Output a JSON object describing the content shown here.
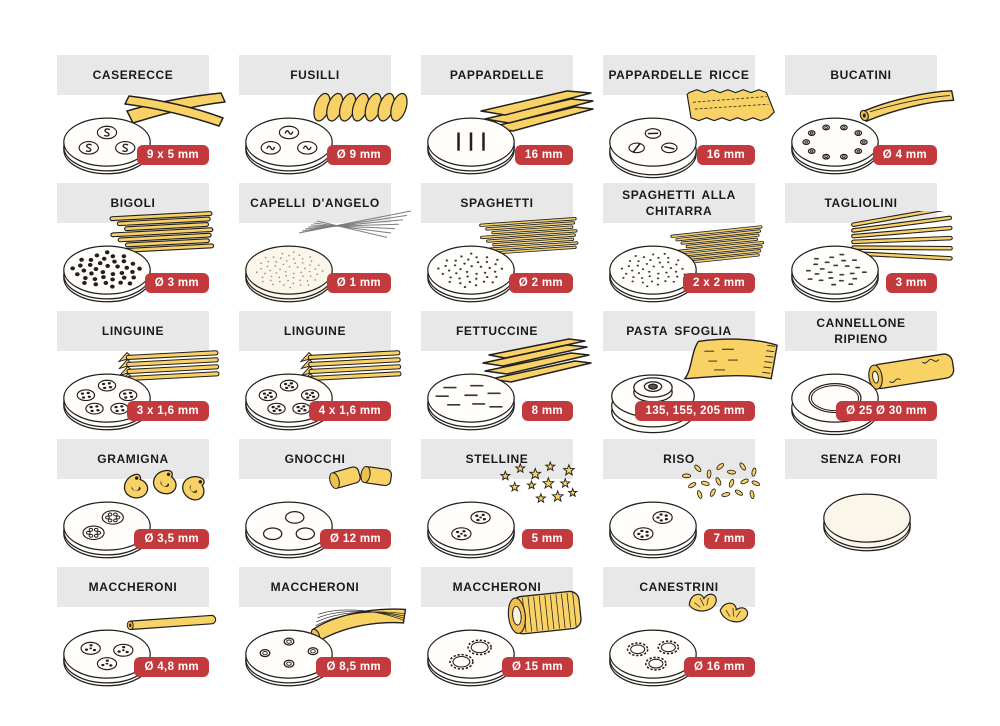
{
  "colors": {
    "background": "#ffffff",
    "bar_bg": "#e8e8e8",
    "title_text": "#1b1b1b",
    "badge_bg": "#c23a3e",
    "badge_text": "#ffffff",
    "pasta_fill": "#f8d265",
    "pasta_shade": "#eec04e",
    "pasta_light": "#fdf3d8",
    "capelli_strand": "#7d7d7d",
    "outline": "#221f1f",
    "die_fill": "#fffefb",
    "die_cream": "#faf6ea",
    "hole_dark": "#3a3a3a"
  },
  "items": [
    {
      "title": "CASERECCE",
      "size": "9 x 5 mm",
      "die": "caserecce",
      "pasta": "caserecce"
    },
    {
      "title": "FUSILLI",
      "size": "Ø 9 mm",
      "die": "fusilli",
      "pasta": "fusilli"
    },
    {
      "title": "PAPPARDELLE",
      "size": "16 mm",
      "die": "pappardelle",
      "pasta": "pappardelle"
    },
    {
      "title": "PAPPARDELLE RICCE",
      "size": "16 mm",
      "die": "pappardelle-ricce",
      "pasta": "pappardelle-ricce"
    },
    {
      "title": "BUCATINI",
      "size": "Ø 4 mm",
      "die": "bucatini",
      "pasta": "bucatini"
    },
    {
      "title": "BIGOLI",
      "size": "Ø 3 mm",
      "die": "bigoli",
      "pasta": "bigoli"
    },
    {
      "title": "CAPELLI D'ANGELO",
      "size": "Ø 1 mm",
      "die": "capelli-dangelo",
      "pasta": "capelli-dangelo"
    },
    {
      "title": "SPAGHETTI",
      "size": "Ø 2 mm",
      "die": "spaghetti",
      "pasta": "spaghetti"
    },
    {
      "title": "SPAGHETTI ALLA CHITARRA",
      "size": "2 x 2 mm",
      "die": "chitarra",
      "pasta": "chitarra"
    },
    {
      "title": "TAGLIOLINI",
      "size": "3 mm",
      "die": "tagliolini",
      "pasta": "tagliolini"
    },
    {
      "title": "LINGUINE",
      "size": "3 x 1,6 mm",
      "die": "linguine-3",
      "pasta": "linguine"
    },
    {
      "title": "LINGUINE",
      "size": "4 x 1,6 mm",
      "die": "linguine-4",
      "pasta": "linguine"
    },
    {
      "title": "FETTUCCINE",
      "size": "8 mm",
      "die": "fettuccine",
      "pasta": "fettuccine"
    },
    {
      "title": "PASTA SFOGLIA",
      "size": "135, 155, 205 mm",
      "die": "sfoglia",
      "pasta": "sfoglia"
    },
    {
      "title": "CANNELLONE RIPIENO",
      "size": "Ø 25 Ø 30 mm",
      "die": "cannellone",
      "pasta": "cannellone"
    },
    {
      "title": "GRAMIGNA",
      "size": "Ø 3,5 mm",
      "die": "gramigna",
      "pasta": "gramigna"
    },
    {
      "title": "GNOCCHI",
      "size": "Ø 12 mm",
      "die": "gnocchi",
      "pasta": "gnocchi"
    },
    {
      "title": "STELLINE",
      "size": "5 mm",
      "die": "stelline",
      "pasta": "stelline"
    },
    {
      "title": "RISO",
      "size": "7 mm",
      "die": "riso",
      "pasta": "riso"
    },
    {
      "title": "SENZA FORI",
      "size": null,
      "die": "senza-fori",
      "pasta": null
    },
    {
      "title": "MACCHERONI",
      "size": "Ø 4,8 mm",
      "die": "maccheroni-3",
      "pasta": "maccheroni-thin"
    },
    {
      "title": "MACCHERONI",
      "size": "Ø 8,5 mm",
      "die": "maccheroni-4",
      "pasta": "maccheroni-mid"
    },
    {
      "title": "MACCHERONI",
      "size": "Ø 15 mm",
      "die": "maccheroni-2",
      "pasta": "maccheroni-big"
    },
    {
      "title": "CANESTRINI",
      "size": "Ø 16 mm",
      "die": "canestrini",
      "pasta": "canestrini"
    }
  ]
}
